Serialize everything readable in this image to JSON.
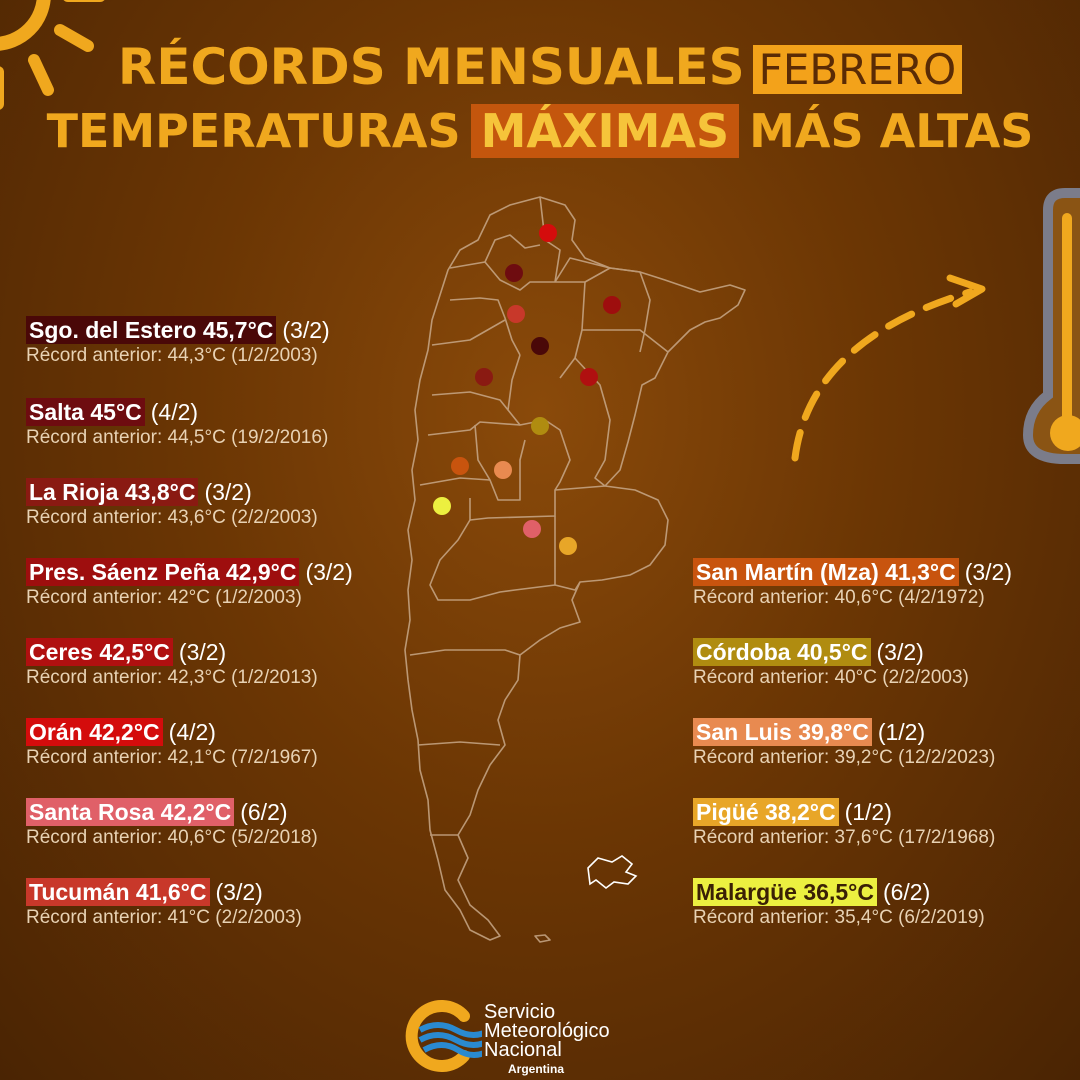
{
  "header": {
    "line1_text": "RÉCORDS MENSUALES",
    "line1_highlight": "FEBRERO",
    "line2_before": "TEMPERATURAS",
    "line2_highlight": "MÁXIMAS",
    "line2_after": "MÁS ALTAS"
  },
  "records_left": [
    {
      "station": "Sgo. del Estero 45,7°C",
      "date": "(3/2)",
      "previous": "Récord anterior: 44,3°C (1/2/2003)",
      "color": "#4a0808"
    },
    {
      "station": "Salta 45°C",
      "date": "(4/2)",
      "previous": "Récord anterior: 44,5°C (19/2/2016)",
      "color": "#6e0c10"
    },
    {
      "station": "La Rioja 43,8°C",
      "date": "(3/2)",
      "previous": "Récord anterior: 43,6°C (2/2/2003)",
      "color": "#8a1a12"
    },
    {
      "station": "Pres. Sáenz Peña 42,9°C",
      "date": "(3/2)",
      "previous": "Récord anterior: 42°C (1/2/2003)",
      "color": "#9e0e0e"
    },
    {
      "station": "Ceres 42,5°C",
      "date": "(3/2)",
      "previous": "Récord anterior: 42,3°C (1/2/2013)",
      "color": "#b01010"
    },
    {
      "station": "Orán 42,2°C",
      "date": "(4/2)",
      "previous": "Récord anterior: 42,1°C (7/2/1967)",
      "color": "#d40c0c"
    },
    {
      "station": "Santa Rosa 42,2°C",
      "date": "(6/2)",
      "previous": "Récord anterior: 40,6°C (5/2/2018)",
      "color": "#e06068"
    },
    {
      "station": "Tucumán 41,6°C",
      "date": "(3/2)",
      "previous": "Récord anterior: 41°C (2/2/2003)",
      "color": "#c8382a"
    }
  ],
  "records_right": [
    {
      "station": "San Martín (Mza) 41,3°C",
      "date": "(3/2)",
      "previous": "Récord anterior: 40,6°C (4/2/1972)",
      "color": "#c8540e"
    },
    {
      "station": "Córdoba 40,5°C",
      "date": "(3/2)",
      "previous": "Récord anterior: 40°C (2/2/2003)",
      "color": "#b08c10"
    },
    {
      "station": "San Luis 39,8°C",
      "date": "(1/2)",
      "previous": "Récord anterior: 39,2°C (12/2/2023)",
      "color": "#e88a50"
    },
    {
      "station": "Pigüé 38,2°C",
      "date": "(1/2)",
      "previous": "Récord anterior: 37,6°C (17/2/1968)",
      "color": "#e8a628"
    },
    {
      "station": "Malargüe 36,5°C",
      "date": "(6/2)",
      "previous": "Récord anterior: 35,4°C (6/2/2019)",
      "color": "#ecf040"
    }
  ],
  "map_colors": {
    "background": "#6b3604",
    "title": "#f0a81e",
    "province_outline": "#c8a888"
  },
  "map_markers": [
    {
      "station": "Orán",
      "color": "#d40c0c"
    },
    {
      "station": "Salta",
      "color": "#6e0c10"
    },
    {
      "station": "Pres. Sáenz Peña",
      "color": "#9e0e0e"
    },
    {
      "station": "Tucumán",
      "color": "#c8382a"
    },
    {
      "station": "Sgo. del Estero",
      "color": "#4a0808"
    },
    {
      "station": "La Rioja",
      "color": "#8a1a12"
    },
    {
      "station": "Ceres",
      "color": "#b01010"
    },
    {
      "station": "Córdoba",
      "color": "#b08c10"
    },
    {
      "station": "San Martín (Mza)",
      "color": "#c8540e"
    },
    {
      "station": "San Luis",
      "color": "#e88a50"
    },
    {
      "station": "Malargüe",
      "color": "#ecf040"
    },
    {
      "station": "Santa Rosa",
      "color": "#e06068"
    },
    {
      "station": "Pigüé",
      "color": "#e8a628"
    }
  ],
  "logo": {
    "line1": "Servicio",
    "line2": "Meteorológico",
    "line3": "Nacional",
    "line4": "Argentina"
  },
  "icons": [
    "sun-icon",
    "thermometer-icon",
    "dashed-arrow-icon",
    "smn-logo-icon"
  ]
}
